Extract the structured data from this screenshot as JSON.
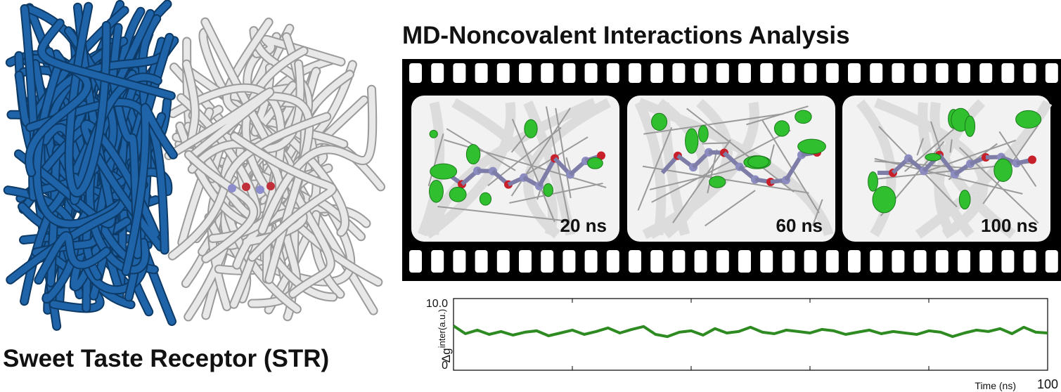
{
  "left_title": "Sweet Taste Receptor (STR)",
  "right_title": "MD-Noncovalent Interactions Analysis",
  "frames": [
    {
      "label": "20 ns"
    },
    {
      "label": "60 ns"
    },
    {
      "label": "100 ns"
    }
  ],
  "chart_data": {
    "type": "line",
    "y_label": {
      "base": "Δg",
      "sup": "inter",
      "unit": "(a.u.)"
    },
    "x_label": "Time (ns)",
    "xlim": [
      0,
      100
    ],
    "xticks": [
      {
        "value": 20,
        "label": null
      },
      {
        "value": 40,
        "label": null
      },
      {
        "value": 60,
        "label": null
      },
      {
        "value": 80,
        "label": null
      },
      100
    ],
    "ylim": [
      0,
      10
    ],
    "yticks": [
      0,
      {
        "value": 10,
        "label": "10.0"
      }
    ],
    "x": [
      0,
      2,
      4,
      6,
      8,
      10,
      12,
      14,
      16,
      18,
      20,
      22,
      24,
      26,
      28,
      30,
      32,
      34,
      36,
      38,
      40,
      42,
      44,
      46,
      48,
      50,
      52,
      54,
      56,
      58,
      60,
      62,
      64,
      66,
      68,
      70,
      72,
      74,
      76,
      78,
      80,
      82,
      84,
      86,
      88,
      90,
      92,
      94,
      96,
      98,
      100
    ],
    "series": [
      {
        "color": "#2e8b22",
        "values": [
          6.2,
          5.1,
          5.6,
          5.0,
          5.4,
          4.9,
          5.3,
          5.5,
          4.8,
          5.2,
          5.6,
          5.0,
          5.4,
          5.9,
          5.2,
          5.7,
          6.1,
          5.0,
          4.7,
          5.3,
          5.5,
          4.9,
          5.8,
          5.2,
          5.4,
          6.0,
          5.3,
          5.1,
          5.6,
          5.4,
          5.2,
          5.7,
          5.5,
          5.0,
          5.3,
          5.6,
          5.1,
          5.4,
          5.2,
          5.0,
          5.5,
          5.3,
          4.7,
          5.2,
          5.6,
          5.4,
          5.8,
          5.1,
          6.0,
          5.3,
          5.2
        ]
      }
    ]
  }
}
